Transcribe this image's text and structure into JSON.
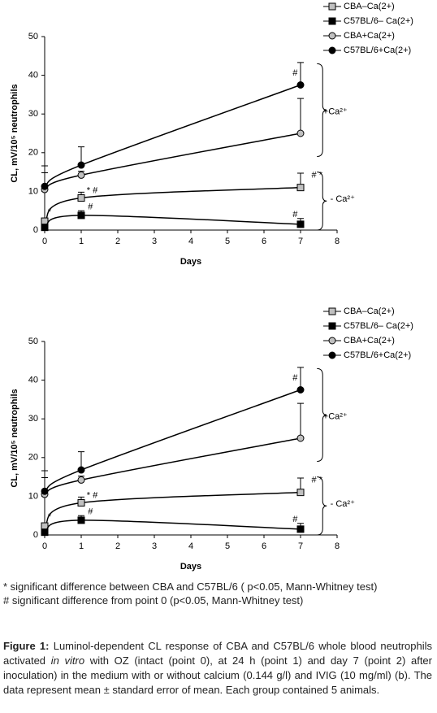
{
  "chart_data": [
    {
      "type": "line",
      "xlabel": "Days",
      "ylabel": "CL, mV/10⁵ neutrophils",
      "x": [
        0,
        1,
        7
      ],
      "xlim": [
        0,
        8
      ],
      "xticks": [
        0,
        1,
        2,
        3,
        4,
        5,
        6,
        7,
        8
      ],
      "ylim": [
        0,
        50
      ],
      "yticks": [
        0,
        10,
        20,
        30,
        40,
        50
      ],
      "grid": false,
      "series": [
        {
          "name": "CBA–Ca(2+)",
          "color": "#c0c0c0",
          "marker": "square",
          "values": [
            2.3,
            8.3,
            11
          ],
          "errors": [
            0.5,
            1.5,
            3.7
          ]
        },
        {
          "name": "C57BL/6– Ca(2+)",
          "color": "#000000",
          "marker": "square",
          "values": [
            0.7,
            3.8,
            1.5
          ],
          "errors": [
            0.3,
            1.2,
            1.5
          ]
        },
        {
          "name": "CBA+Ca(2+)",
          "color": "#c0c0c0",
          "marker": "circle",
          "values": [
            10.5,
            14.2,
            25
          ],
          "errors": [
            4.3,
            1.0,
            9
          ]
        },
        {
          "name": "C57BL/6+Ca(2+)",
          "color": "#000000",
          "marker": "circle",
          "values": [
            11.3,
            16.8,
            37.5
          ],
          "errors": [
            5.3,
            4.7,
            5.8
          ]
        }
      ],
      "annotations": [
        "#",
        "# *",
        "* #",
        "#",
        "*",
        "#",
        "+Ca²⁺",
        "- Ca²⁺"
      ]
    },
    {
      "type": "line",
      "xlabel": "Days",
      "ylabel": "CL, mV/10⁵ neutrophils",
      "x": [
        0,
        1,
        7
      ],
      "xlim": [
        0,
        8
      ],
      "xticks": [
        0,
        1,
        2,
        3,
        4,
        5,
        6,
        7,
        8
      ],
      "ylim": [
        0,
        50
      ],
      "yticks": [
        0,
        10,
        20,
        30,
        40,
        50
      ],
      "grid": false,
      "series": [
        {
          "name": "CBA–Ca(2+)",
          "color": "#c0c0c0",
          "marker": "square",
          "values": [
            2.3,
            8.3,
            11
          ],
          "errors": [
            0.5,
            1.5,
            3.7
          ]
        },
        {
          "name": "C57BL/6– Ca(2+)",
          "color": "#000000",
          "marker": "square",
          "values": [
            0.7,
            3.8,
            1.5
          ],
          "errors": [
            0.3,
            1.2,
            1.5
          ]
        },
        {
          "name": "CBA+Ca(2+)",
          "color": "#c0c0c0",
          "marker": "circle",
          "values": [
            10.5,
            14.2,
            25
          ],
          "errors": [
            4.3,
            1.0,
            9
          ]
        },
        {
          "name": "C57BL/6+Ca(2+)",
          "color": "#000000",
          "marker": "circle",
          "values": [
            11.3,
            16.8,
            37.5
          ],
          "errors": [
            5.3,
            4.7,
            5.8
          ]
        }
      ],
      "annotations": [
        "#",
        "# *",
        "* #",
        "#",
        "*",
        "#",
        "+Ca²⁺",
        "- Ca²⁺"
      ]
    }
  ],
  "notes": [
    "* significant difference between CBA and C57BL/6 ( p<0.05, Mann-Whitney test)",
    "# significant difference from point 0 (p<0.05, Mann-Whitney test)"
  ],
  "caption": {
    "label": "Figure 1:",
    "parts": [
      "Luminol-dependent CL response of CBA and C57BL/6 whole blood neutrophils activated ",
      "in vitro",
      " with OZ (intact (point 0), at 24 h (point 1) and day 7 (point 2) after inoculation) in the medium with or without calcium (0.144 g/l) and IVIG (10 mg/ml) (b). The data represent mean ± standard error of mean. Each group contained 5 animals."
    ]
  }
}
